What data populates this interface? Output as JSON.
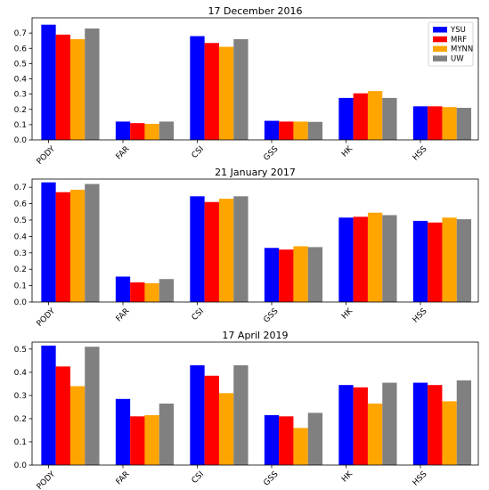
{
  "chart_data": [
    {
      "type": "bar",
      "title": "17 December 2016",
      "categories": [
        "PODY",
        "FAR",
        "CSI",
        "GSS",
        "HK",
        "HSS"
      ],
      "ylim": [
        0,
        0.8
      ],
      "yticks": [
        "0.0",
        "0.1",
        "0.2",
        "0.3",
        "0.4",
        "0.5",
        "0.6",
        "0.7"
      ],
      "grid": false,
      "legend": "top-right",
      "series": [
        {
          "name": "YSU",
          "color": "#0000ff",
          "values": [
            0.755,
            0.12,
            0.68,
            0.125,
            0.275,
            0.22
          ]
        },
        {
          "name": "MRF",
          "color": "#ff0000",
          "values": [
            0.69,
            0.11,
            0.635,
            0.12,
            0.305,
            0.22
          ]
        },
        {
          "name": "MYNN",
          "color": "#ffa500",
          "values": [
            0.66,
            0.105,
            0.61,
            0.12,
            0.32,
            0.215
          ]
        },
        {
          "name": "UW",
          "color": "#808080",
          "values": [
            0.73,
            0.12,
            0.66,
            0.118,
            0.275,
            0.21
          ]
        }
      ]
    },
    {
      "type": "bar",
      "title": "21 January 2017",
      "categories": [
        "PODY",
        "FAR",
        "CSI",
        "GSS",
        "HK",
        "HSS"
      ],
      "ylim": [
        0,
        0.75
      ],
      "yticks": [
        "0.0",
        "0.1",
        "0.2",
        "0.3",
        "0.4",
        "0.5",
        "0.6",
        "0.7"
      ],
      "grid": false,
      "series": [
        {
          "name": "YSU",
          "color": "#0000ff",
          "values": [
            0.73,
            0.155,
            0.645,
            0.33,
            0.515,
            0.495
          ]
        },
        {
          "name": "MRF",
          "color": "#ff0000",
          "values": [
            0.67,
            0.12,
            0.61,
            0.32,
            0.52,
            0.485
          ]
        },
        {
          "name": "MYNN",
          "color": "#ffa500",
          "values": [
            0.685,
            0.115,
            0.63,
            0.34,
            0.545,
            0.515
          ]
        },
        {
          "name": "UW",
          "color": "#808080",
          "values": [
            0.72,
            0.14,
            0.645,
            0.335,
            0.53,
            0.505
          ]
        }
      ]
    },
    {
      "type": "bar",
      "title": "17 April 2019",
      "categories": [
        "PODY",
        "FAR",
        "CSI",
        "GSS",
        "HK",
        "HSS"
      ],
      "ylim": [
        0,
        0.53
      ],
      "yticks": [
        "0.0",
        "0.1",
        "0.2",
        "0.3",
        "0.4",
        "0.5"
      ],
      "grid": false,
      "series": [
        {
          "name": "YSU",
          "color": "#0000ff",
          "values": [
            0.515,
            0.285,
            0.43,
            0.215,
            0.345,
            0.355
          ]
        },
        {
          "name": "MRF",
          "color": "#ff0000",
          "values": [
            0.425,
            0.21,
            0.385,
            0.21,
            0.335,
            0.345
          ]
        },
        {
          "name": "MYNN",
          "color": "#ffa500",
          "values": [
            0.34,
            0.215,
            0.31,
            0.16,
            0.265,
            0.275
          ]
        },
        {
          "name": "UW",
          "color": "#808080",
          "values": [
            0.51,
            0.265,
            0.43,
            0.225,
            0.355,
            0.365
          ]
        }
      ]
    }
  ]
}
